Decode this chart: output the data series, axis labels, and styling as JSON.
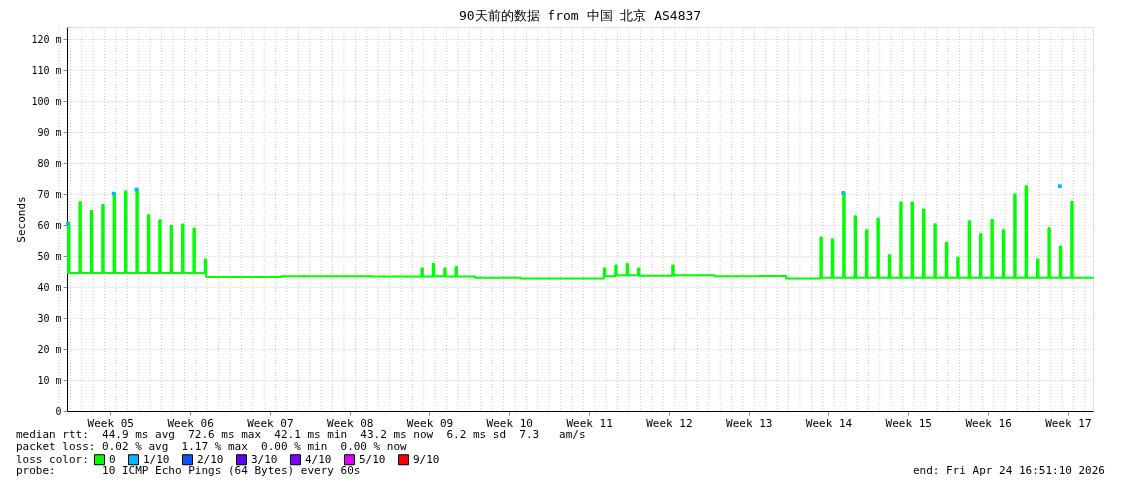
{
  "chart_data": {
    "type": "step",
    "title": "90天前的数据 from 中国 北京 AS4837",
    "ylabel": "Seconds",
    "legend_title": "loss color:",
    "legend": "bottom left",
    "grid": true,
    "xlim": [
      "2026-01-24T16:51",
      "2026-04-24T16:51"
    ],
    "xticks": [
      {
        "value": "2026-01-28T12:00",
        "label": "Week 05"
      },
      {
        "value": "2026-02-04T12:00",
        "label": "Week 06"
      },
      {
        "value": "2026-02-11T12:00",
        "label": "Week 07"
      },
      {
        "value": "2026-02-18T12:00",
        "label": "Week 08"
      },
      {
        "value": "2026-02-25T12:00",
        "label": "Week 09"
      },
      {
        "value": "2026-03-04T12:00",
        "label": "Week 10"
      },
      {
        "value": "2026-03-11T12:00",
        "label": "Week 11"
      },
      {
        "value": "2026-03-18T12:00",
        "label": "Week 12"
      },
      {
        "value": "2026-03-25T12:00",
        "label": "Week 13"
      },
      {
        "value": "2026-04-01T12:00",
        "label": "Week 14"
      },
      {
        "value": "2026-04-08T12:00",
        "label": "Week 15"
      },
      {
        "value": "2026-04-15T12:00",
        "label": "Week 16"
      },
      {
        "value": "2026-04-22T12:00",
        "label": "Week 17"
      }
    ],
    "ylim": [
      0,
      124
    ],
    "yticks": [
      0,
      {
        "value": 10,
        "label": "10 m"
      },
      {
        "value": 20,
        "label": "20 m"
      },
      {
        "value": 30,
        "label": "30 m"
      },
      {
        "value": 40,
        "label": "40 m"
      },
      {
        "value": 50,
        "label": "50 m"
      },
      {
        "value": 60,
        "label": "60 m"
      },
      {
        "value": 70,
        "label": "70 m"
      },
      {
        "value": 80,
        "label": "80 m"
      },
      {
        "value": 90,
        "label": "90 m"
      },
      {
        "value": 100,
        "label": "100 m"
      },
      {
        "value": 110,
        "label": "110 m"
      },
      {
        "value": 120,
        "label": "120 m"
      }
    ],
    "series": [
      {
        "name": "0",
        "color": "#00ff00",
        "x": [
          "2026-01-24T16:51",
          "2026-01-24T19:00",
          "2026-01-24T22:00",
          "2026-01-25T19:00",
          "2026-01-25T22:00",
          "2026-01-26T19:00",
          "2026-01-26T22:00",
          "2026-01-27T19:00",
          "2026-01-27T22:00",
          "2026-01-28T19:00",
          "2026-01-28T22:00",
          "2026-01-29T19:00",
          "2026-01-29T22:00",
          "2026-01-30T19:00",
          "2026-01-30T22:00",
          "2026-01-31T19:00",
          "2026-01-31T22:00",
          "2026-02-01T19:00",
          "2026-02-01T22:00",
          "2026-02-02T19:00",
          "2026-02-02T22:00",
          "2026-02-03T19:00",
          "2026-02-03T22:00",
          "2026-02-04T19:00",
          "2026-02-04T22:00",
          "2026-02-05T19:00",
          "2026-02-05T22:00",
          "2026-02-08T12:00",
          "2026-02-12T12:00",
          "2026-02-16T12:00",
          "2026-02-20T12:00",
          "2026-02-24T19:00",
          "2026-02-24T22:00",
          "2026-02-25T19:00",
          "2026-02-25T22:00",
          "2026-02-26T19:00",
          "2026-02-26T22:00",
          "2026-02-27T19:00",
          "2026-02-27T22:00",
          "2026-03-01T12:00",
          "2026-03-05T12:00",
          "2026-03-09T12:00",
          "2026-03-12T19:00",
          "2026-03-12T22:00",
          "2026-03-13T19:00",
          "2026-03-13T22:00",
          "2026-03-14T19:00",
          "2026-03-14T22:00",
          "2026-03-15T19:00",
          "2026-03-15T22:00",
          "2026-03-18T19:00",
          "2026-03-18T22:00",
          "2026-03-22T12:00",
          "2026-03-26T12:00",
          "2026-03-28T19:00",
          "2026-03-31T19:00",
          "2026-03-31T22:00",
          "2026-04-01T19:00",
          "2026-04-01T22:00",
          "2026-04-02T19:00",
          "2026-04-02T22:00",
          "2026-04-03T19:00",
          "2026-04-03T22:00",
          "2026-04-04T19:00",
          "2026-04-04T22:00",
          "2026-04-05T19:00",
          "2026-04-05T22:00",
          "2026-04-06T19:00",
          "2026-04-06T22:00",
          "2026-04-07T19:00",
          "2026-04-07T22:00",
          "2026-04-08T19:00",
          "2026-04-08T22:00",
          "2026-04-09T19:00",
          "2026-04-09T22:00",
          "2026-04-10T19:00",
          "2026-04-10T22:00",
          "2026-04-11T19:00",
          "2026-04-11T22:00",
          "2026-04-12T19:00",
          "2026-04-12T22:00",
          "2026-04-13T19:00",
          "2026-04-13T22:00",
          "2026-04-14T19:00",
          "2026-04-14T22:00",
          "2026-04-15T19:00",
          "2026-04-15T22:00",
          "2026-04-16T19:00",
          "2026-04-16T22:00",
          "2026-04-17T19:00",
          "2026-04-17T22:00",
          "2026-04-18T19:00",
          "2026-04-18T22:00",
          "2026-04-19T19:00",
          "2026-04-19T22:00",
          "2026-04-20T19:00",
          "2026-04-20T22:00",
          "2026-04-21T19:00",
          "2026-04-21T22:00",
          "2026-04-22T19:00",
          "2026-04-22T22:00",
          "2026-04-24T16:51"
        ],
        "values": [
          44.6,
          60.5,
          44.6,
          67.4,
          44.6,
          64.6,
          44.6,
          66.5,
          44.6,
          70.2,
          44.6,
          70.9,
          44.6,
          71.5,
          44.6,
          63.2,
          44.6,
          61.6,
          44.6,
          59.7,
          44.6,
          60.2,
          44.6,
          58.9,
          44.6,
          48.9,
          43.3,
          43.3,
          43.5,
          43.5,
          43.4,
          46,
          43.4,
          47.5,
          43.5,
          46,
          43.4,
          46.5,
          43.4,
          43,
          42.8,
          42.8,
          46,
          43.5,
          47,
          43.8,
          47.5,
          43.8,
          46,
          43.7,
          47,
          43.8,
          43.5,
          43.6,
          42.8,
          56,
          43,
          55.4,
          43,
          70.4,
          43,
          62.9,
          43,
          58.4,
          43,
          62.2,
          43,
          50.3,
          43,
          67.3,
          43,
          67.3,
          43,
          65.1,
          43,
          60.3,
          43,
          54.3,
          43,
          49.5,
          43,
          61.3,
          43,
          57.1,
          43,
          61.7,
          43,
          58.4,
          43,
          69.9,
          43,
          72.6,
          43,
          48.9,
          43,
          59,
          43,
          53,
          43,
          67.5,
          43,
          43.2
        ]
      },
      {
        "name": "1/10",
        "type": "scatter",
        "marker": "square",
        "color": "#00b8ff",
        "x": [
          "2026-01-24T19:00",
          "2026-01-28T19:00",
          "2026-01-30T19:00",
          "2026-04-02T19:00",
          "2026-04-21T19:00"
        ],
        "values": [
          60.5,
          70.2,
          71.5,
          70.4,
          72.6
        ]
      },
      {
        "name": "2/10",
        "type": "scatter",
        "color": "#0059ff"
      },
      {
        "name": "3/10",
        "type": "scatter",
        "color": "#5e00ff"
      },
      {
        "name": "4/10",
        "type": "scatter",
        "color": "#7e00ff"
      },
      {
        "name": "5/10",
        "type": "scatter",
        "color": "#dd00ff"
      },
      {
        "name": "9/10",
        "type": "scatter",
        "color": "#ff0000"
      }
    ],
    "annotations": [
      "median rtt:  44.9 ms avg  72.6 ms max  42.1 ms min  43.2 ms now  6.2 ms sd  7.3   am/s",
      "packet loss: 0.02 % avg  1.17 % max  0.00 % min  0.00 % now",
      "probe:       10 ICMP Echo Pings (64 Bytes) every 60s",
      "end: Fri Apr 24 16:51:10 2026"
    ]
  }
}
